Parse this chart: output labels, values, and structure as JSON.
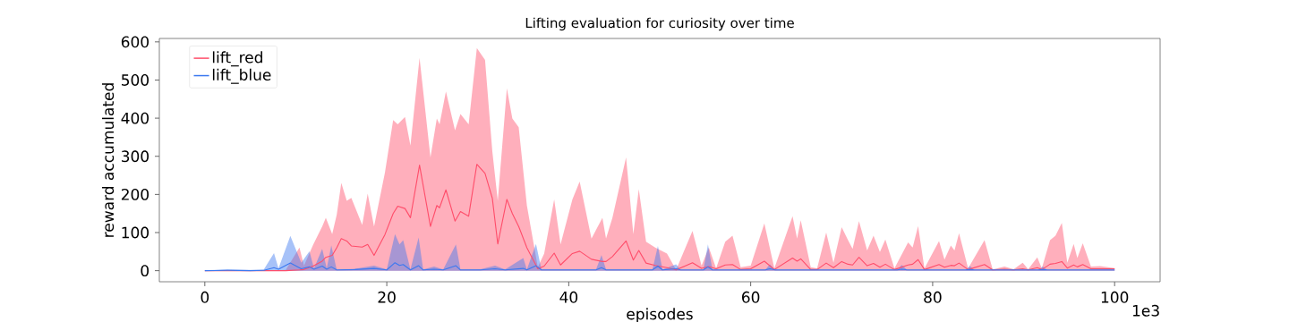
{
  "chart_data": {
    "type": "line",
    "title": "Lifting evaluation for curiosity over time",
    "xlabel": "episodes",
    "ylabel": "reward accumulated",
    "annotations": [
      "1e3"
    ],
    "xlim": [
      -5,
      105
    ],
    "ylim": [
      -29,
      609
    ],
    "xticks": [
      0,
      20,
      40,
      60,
      80,
      100
    ],
    "yticks": [
      0,
      100,
      200,
      300,
      400,
      500,
      600
    ],
    "legend": "top left",
    "series": [
      {
        "name": "lift_red",
        "color": "#ff4d6a",
        "x": [
          0,
          7.0,
          8.9,
          10.4,
          10.9,
          11.9,
          12.9,
          13.3,
          14.0,
          14.5,
          15.0,
          15.6,
          16.1,
          17.3,
          17.9,
          18.6,
          19.8,
          20.7,
          21.2,
          22.0,
          22.6,
          23.6,
          24.8,
          25.5,
          25.8,
          26.5,
          27.5,
          28.1,
          29.0,
          29.9,
          30.8,
          31.6,
          32.2,
          33.2,
          33.8,
          34.5,
          35.4,
          36.6,
          37.3,
          38.4,
          39.1,
          40.4,
          41.2,
          42.5,
          43.7,
          44.1,
          44.8,
          46.3,
          47.1,
          47.7,
          48.5,
          49.5,
          50.8,
          51.8,
          53.6,
          54.6,
          55.4,
          56.2,
          57.2,
          58.0,
          58.9,
          60.0,
          61.5,
          62.6,
          64.6,
          65.1,
          65.5,
          66.6,
          67.3,
          68.3,
          69.1,
          70.0,
          70.7,
          71.2,
          71.9,
          72.8,
          73.5,
          74.2,
          74.8,
          75.8,
          77.3,
          77.8,
          78.4,
          79.1,
          80.7,
          81.3,
          82.0,
          82.4,
          82.9,
          83.9,
          85.7,
          86.6,
          87.9,
          88.9,
          89.9,
          90.5,
          91.5,
          92.0,
          92.9,
          93.5,
          94.2,
          94.8,
          95.5,
          95.9,
          96.5,
          97.4,
          98.4,
          100
        ],
        "values": [
          0,
          0,
          0,
          2,
          3,
          12,
          25,
          35,
          40,
          60,
          84,
          78,
          65,
          62,
          69,
          40,
          95,
          150,
          169,
          163,
          139,
          277,
          116,
          171,
          165,
          212,
          130,
          155,
          143,
          279,
          255,
          190,
          70,
          187,
          150,
          116,
          60,
          5,
          12,
          46,
          15,
          45,
          51,
          30,
          24,
          24,
          37,
          78,
          28,
          53,
          20,
          14,
          8,
          2,
          21,
          6,
          11,
          5,
          15,
          16,
          3,
          5,
          25,
          3,
          33,
          25,
          31,
          3,
          3,
          20,
          8,
          24,
          17,
          15,
          35,
          13,
          19,
          9,
          17,
          3,
          15,
          17,
          29,
          3,
          16,
          9,
          14,
          13,
          20,
          3,
          16,
          2,
          4,
          2,
          5,
          2,
          8,
          3,
          17,
          19,
          24,
          7,
          15,
          10,
          16,
          5,
          5,
          5
        ]
      },
      {
        "type": "area",
        "color": "#ff4d6a",
        "x": [
          0,
          7.0,
          8.9,
          10.4,
          10.9,
          11.9,
          12.9,
          13.3,
          14.0,
          14.5,
          15.0,
          15.6,
          16.1,
          17.3,
          17.9,
          18.6,
          19.8,
          20.7,
          21.2,
          22.0,
          22.6,
          23.6,
          24.8,
          25.5,
          25.8,
          26.5,
          27.5,
          28.1,
          29.0,
          29.9,
          30.8,
          31.6,
          32.2,
          33.2,
          33.8,
          34.5,
          35.4,
          36.6,
          37.3,
          38.4,
          39.1,
          40.4,
          41.2,
          42.5,
          43.7,
          44.1,
          44.8,
          46.3,
          47.1,
          47.7,
          48.5,
          49.5,
          50.8,
          51.8,
          53.6,
          54.6,
          55.4,
          56.2,
          57.2,
          58.0,
          58.9,
          60.0,
          61.5,
          62.6,
          64.6,
          65.1,
          65.5,
          66.6,
          67.3,
          68.3,
          69.1,
          70.0,
          70.7,
          71.2,
          71.9,
          72.8,
          73.5,
          74.2,
          74.8,
          75.8,
          77.3,
          77.8,
          78.4,
          79.1,
          80.7,
          81.3,
          82.0,
          82.4,
          82.9,
          83.9,
          85.7,
          86.6,
          87.9,
          88.9,
          89.9,
          90.5,
          91.5,
          92.0,
          92.9,
          93.5,
          94.2,
          94.8,
          95.5,
          95.9,
          96.5,
          97.4,
          98.4,
          100
        ],
        "values": [
          0,
          0,
          2,
          61,
          13,
          68,
          116,
          139,
          96,
          147,
          230,
          183,
          191,
          120,
          202,
          116,
          258,
          395,
          384,
          403,
          328,
          558,
          297,
          399,
          384,
          470,
          368,
          411,
          384,
          584,
          553,
          313,
          183,
          478,
          399,
          376,
          171,
          9,
          45,
          187,
          69,
          187,
          234,
          84,
          139,
          84,
          139,
          297,
          96,
          214,
          76,
          61,
          45,
          2,
          104,
          13,
          61,
          6,
          76,
          92,
          9,
          13,
          124,
          6,
          143,
          84,
          132,
          9,
          6,
          100,
          21,
          114,
          80,
          57,
          130,
          53,
          92,
          49,
          82,
          6,
          74,
          61,
          117,
          6,
          78,
          29,
          66,
          53,
          98,
          6,
          80,
          3,
          11,
          4,
          21,
          4,
          35,
          6,
          80,
          92,
          125,
          21,
          70,
          33,
          72,
          11,
          12,
          7
        ]
      },
      {
        "name": "lift_blue",
        "color": "#3b78f0",
        "x": [
          0,
          2.5,
          5.0,
          6.5,
          7.6,
          8.1,
          9.4,
          10.6,
          11.5,
          12.0,
          12.9,
          13.4,
          13.9,
          14.5,
          16.5,
          18.6,
          20.0,
          20.9,
          21.4,
          21.8,
          22.6,
          23.5,
          24.0,
          25.2,
          26.2,
          27.6,
          28.1,
          30.3,
          31.9,
          33.0,
          35.0,
          35.4,
          36.4,
          37.0,
          43.0,
          43.6,
          44.1,
          49.2,
          49.8,
          50.3,
          51.8,
          52.3,
          54.8,
          55.3,
          55.8,
          61.6,
          62.1,
          62.7,
          76.1,
          76.6,
          77.2,
          83.6,
          84.1,
          84.6,
          91.6,
          92.1,
          92.6,
          100
        ],
        "values": [
          0,
          1,
          0,
          1,
          8,
          4,
          20,
          5,
          10,
          4,
          12,
          4,
          10,
          2,
          3,
          6,
          2,
          21,
          14,
          16,
          2,
          13,
          2,
          4,
          2,
          13,
          2,
          2,
          5,
          2,
          6,
          2,
          13,
          2,
          2,
          8,
          2,
          2,
          12,
          2,
          5,
          2,
          2,
          10,
          2,
          2,
          5,
          2,
          2,
          4,
          2,
          2,
          3,
          2,
          2,
          3,
          2,
          2
        ]
      },
      {
        "type": "area",
        "color": "#3b78f0",
        "x": [
          0,
          2.5,
          5.0,
          6.5,
          7.6,
          8.1,
          9.4,
          10.6,
          11.5,
          12.0,
          12.9,
          13.4,
          13.9,
          14.5,
          16.5,
          18.6,
          20.0,
          20.9,
          21.4,
          21.8,
          22.6,
          23.5,
          24.0,
          25.2,
          26.2,
          27.6,
          28.1,
          30.3,
          31.9,
          33.0,
          35.0,
          35.4,
          36.4,
          37.0,
          43.0,
          43.6,
          44.1,
          49.2,
          49.8,
          50.3,
          51.8,
          52.3,
          54.8,
          55.3,
          55.8,
          61.6,
          62.1,
          62.7,
          76.1,
          76.6,
          77.2,
          83.6,
          84.1,
          84.6,
          91.6,
          92.1,
          92.6,
          100
        ],
        "values": [
          0,
          4,
          2,
          4,
          46,
          6,
          91,
          21,
          51,
          6,
          57,
          6,
          66,
          2,
          5,
          13,
          3,
          96,
          69,
          80,
          3,
          87,
          3,
          11,
          3,
          69,
          3,
          4,
          13,
          3,
          33,
          3,
          70,
          3,
          3,
          41,
          3,
          3,
          65,
          3,
          17,
          2,
          2,
          69,
          2,
          2,
          17,
          2,
          2,
          15,
          2,
          2,
          12,
          2,
          2,
          11,
          2,
          2
        ]
      }
    ]
  }
}
